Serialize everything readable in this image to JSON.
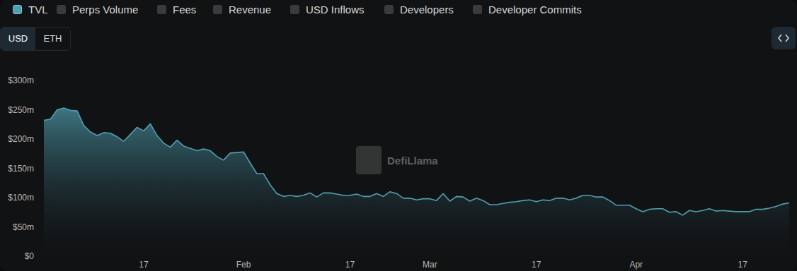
{
  "chart_data": {
    "type": "area",
    "categories": [
      null,
      null,
      null,
      null,
      null,
      null,
      null,
      null,
      null,
      null,
      null,
      null,
      null,
      null,
      null,
      "17",
      null,
      null,
      null,
      null,
      null,
      null,
      null,
      null,
      null,
      null,
      null,
      null,
      null,
      null,
      "Feb",
      null,
      null,
      null,
      null,
      null,
      null,
      null,
      null,
      null,
      null,
      null,
      null,
      null,
      null,
      null,
      "17",
      null,
      null,
      null,
      null,
      null,
      null,
      null,
      null,
      null,
      null,
      null,
      "Mar",
      null,
      null,
      null,
      null,
      null,
      null,
      null,
      null,
      null,
      null,
      null,
      null,
      null,
      null,
      null,
      "17",
      null,
      null,
      null,
      null,
      null,
      null,
      null,
      null,
      null,
      null,
      null,
      null,
      null,
      null,
      "Apr",
      null,
      null,
      null,
      null,
      null,
      null,
      null,
      null,
      null,
      null,
      null,
      null,
      null,
      null,
      null,
      "17",
      null,
      null,
      null,
      null,
      null,
      null,
      null
    ],
    "series": [
      {
        "name": "TVL",
        "color": "#4f9fb0",
        "line_style": "solid",
        "marker": "none",
        "values": [
          232,
          234,
          250,
          253,
          249,
          248,
          223,
          212,
          206,
          211,
          210,
          204,
          196,
          208,
          220,
          214,
          226,
          206,
          193,
          186,
          198,
          188,
          184,
          180,
          183,
          180,
          170,
          164,
          176,
          177,
          178,
          159,
          141,
          141,
          122,
          107,
          102,
          104,
          102,
          104,
          108,
          101,
          108,
          108,
          106,
          104,
          104,
          106,
          102,
          102,
          107,
          102,
          110,
          107,
          99,
          99,
          96,
          98,
          98,
          95,
          107,
          94,
          102,
          101,
          94,
          99,
          95,
          88,
          88,
          90,
          92,
          93,
          95,
          96,
          93,
          96,
          95,
          99,
          99,
          96,
          99,
          104,
          104,
          101,
          101,
          95,
          87,
          87,
          87,
          81,
          76,
          80,
          81,
          81,
          75,
          76,
          70,
          78,
          76,
          78,
          81,
          77,
          78,
          77,
          76,
          76,
          76,
          80,
          80,
          82,
          85,
          89,
          91
        ]
      }
    ],
    "ylim": [
      0,
      300
    ],
    "yticks": [
      {
        "value": 0,
        "label": "$0"
      },
      {
        "value": 50,
        "label": "$50m"
      },
      {
        "value": 100,
        "label": "$100m"
      },
      {
        "value": 150,
        "label": "$150m"
      },
      {
        "value": 200,
        "label": "$200m"
      },
      {
        "value": 250,
        "label": "$250m"
      },
      {
        "value": 300,
        "label": "$300m"
      }
    ],
    "grid": false
  },
  "header": {
    "toggles": [
      "TVL",
      "Perps Volume",
      "Fees",
      "Revenue",
      "USD Inflows",
      "Developers",
      "Developer Commits"
    ],
    "active": "TVL",
    "currency": [
      "USD",
      "ETH"
    ],
    "currency_active": "USD"
  },
  "watermark": "DefiLlama"
}
